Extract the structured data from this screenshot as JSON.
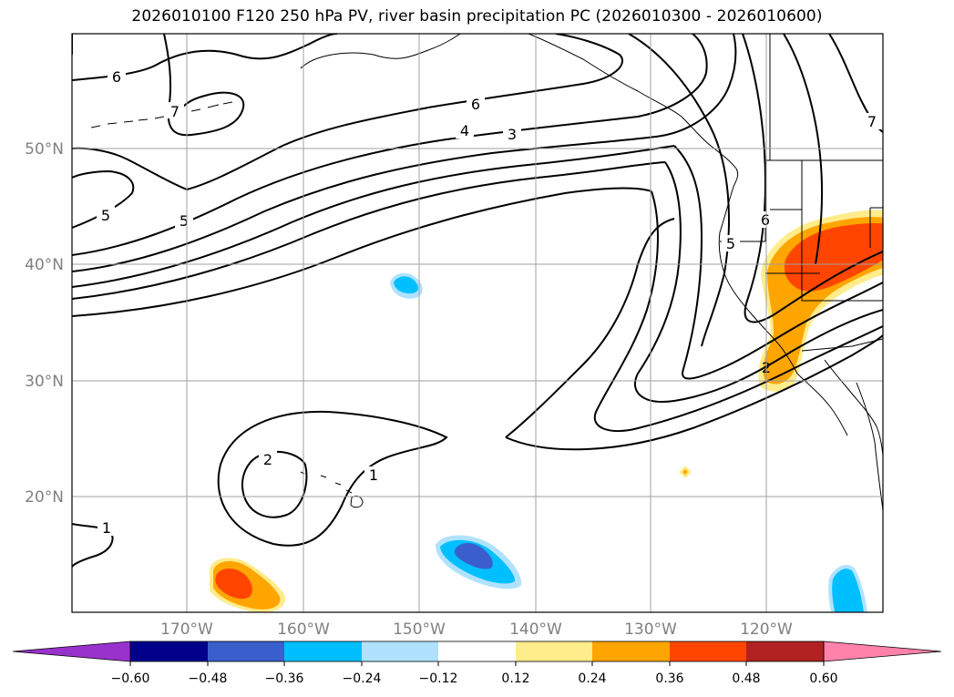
{
  "title": "2026010100 F120 250 hPa PV, river basin precipitation PC (2026010300 - 2026010600)",
  "lat_labels": [
    "50°N",
    "40°N",
    "30°N",
    "20°N"
  ],
  "lon_labels": [
    "170°W",
    "160°W",
    "150°W",
    "140°W",
    "130°W",
    "120°W"
  ],
  "colorbar": {
    "colors": [
      "#9932cc",
      "#00008b",
      "#3a5fcd",
      "#00bfff",
      "#b0e2ff",
      "#ffffff",
      "#ffec8b",
      "#ffa500",
      "#ff4500",
      "#b22222",
      "#ff82ab"
    ],
    "tick_labels": [
      "−0.60",
      "−0.48",
      "−0.36",
      "−0.24",
      "−0.12",
      "0.12",
      "0.24",
      "0.36",
      "0.48",
      "0.60"
    ]
  },
  "contour_labels": [
    "6",
    "7",
    "6",
    "4",
    "3",
    "5",
    "5",
    "6",
    "5",
    "7",
    "2",
    "1",
    "2",
    "1"
  ],
  "chart_data": {
    "type": "map",
    "title": "2026010100 F120 250 hPa PV, river basin precipitation PC (2026010300 - 2026010600)",
    "variable_contours": "250 hPa PV",
    "variable_fill": "river basin precipitation PC",
    "lon_ticks": [
      -170,
      -160,
      -150,
      -140,
      -130,
      -120
    ],
    "lat_ticks": [
      20,
      30,
      40,
      50
    ],
    "pv_contour_levels": [
      1,
      2,
      3,
      4,
      5,
      6,
      7
    ],
    "fill_levels": [
      -0.6,
      -0.48,
      -0.36,
      -0.24,
      -0.12,
      0.12,
      0.24,
      0.36,
      0.48,
      0.6
    ],
    "extend": "both"
  }
}
